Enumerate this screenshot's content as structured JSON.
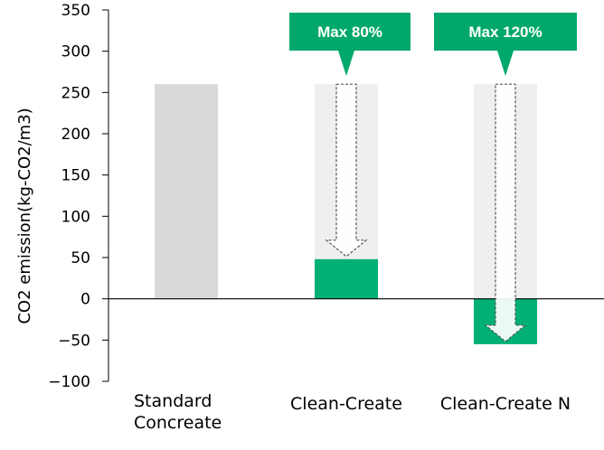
{
  "chart_data": {
    "type": "bar",
    "title": "",
    "xlabel": "",
    "ylabel": "CO2 emission(kg-CO2/m3)",
    "ylim": [
      -100,
      350
    ],
    "yticks": [
      350,
      300,
      250,
      200,
      150,
      100,
      50,
      0,
      -50,
      -100
    ],
    "ytick_labels": [
      "350",
      "300",
      "250",
      "200",
      "150",
      "100",
      "50",
      "0",
      "−50",
      "−100"
    ],
    "categories": [
      {
        "lines": [
          "Standard",
          "Concreate"
        ]
      },
      {
        "lines": [
          "Clean-Create"
        ]
      },
      {
        "lines": [
          "Clean-Create N"
        ]
      }
    ],
    "baseline": 260,
    "values": [
      260,
      48,
      -55
    ],
    "reductions": [
      {
        "category_index": 1,
        "label": "Max 80%"
      },
      {
        "category_index": 2,
        "label": "Max 120%"
      }
    ],
    "grid": false,
    "colors": {
      "standard": "#d9d9d9",
      "baseline_ghost": "#efefef",
      "result": "#00b074",
      "callout": "#00a86b",
      "arrow_fill": "#ffffff",
      "arrow_stroke": "#555555",
      "axis": "#000000"
    }
  }
}
